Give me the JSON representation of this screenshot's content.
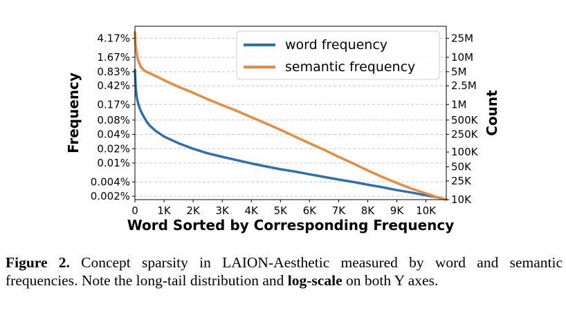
{
  "chart_data": {
    "type": "line",
    "xlabel": "Word Sorted by Corresponding Frequency",
    "ylabel_left": "Frequency",
    "ylabel_right": "Count",
    "xlim": [
      0,
      10700
    ],
    "y_scale": "log",
    "ylim": [
      0.0017,
      7.5
    ],
    "x_ticks": [
      {
        "value": 0,
        "label": "0"
      },
      {
        "value": 1000,
        "label": "1K"
      },
      {
        "value": 2000,
        "label": "2K"
      },
      {
        "value": 3000,
        "label": "3K"
      },
      {
        "value": 4000,
        "label": "4K"
      },
      {
        "value": 5000,
        "label": "5K"
      },
      {
        "value": 6000,
        "label": "6K"
      },
      {
        "value": 7000,
        "label": "7K"
      },
      {
        "value": 8000,
        "label": "8K"
      },
      {
        "value": 9000,
        "label": "9K"
      },
      {
        "value": 10000,
        "label": "10K"
      }
    ],
    "y_ticks_left": [
      {
        "value": 4.17,
        "label": "4.17%"
      },
      {
        "value": 1.67,
        "label": "1.67%"
      },
      {
        "value": 0.83,
        "label": "0.83%"
      },
      {
        "value": 0.42,
        "label": "0.42%"
      },
      {
        "value": 0.17,
        "label": "0.17%"
      },
      {
        "value": 0.08,
        "label": "0.08%"
      },
      {
        "value": 0.04,
        "label": "0.04%"
      },
      {
        "value": 0.02,
        "label": "0.02%"
      },
      {
        "value": 0.01,
        "label": "0.01%"
      },
      {
        "value": 0.004,
        "label": "0.004%"
      },
      {
        "value": 0.002,
        "label": "0.002%"
      }
    ],
    "y_ticks_right": [
      {
        "value": 4.17,
        "label": "25M"
      },
      {
        "value": 1.67,
        "label": "10M"
      },
      {
        "value": 0.83,
        "label": "5M"
      },
      {
        "value": 0.42,
        "label": "2.5M"
      },
      {
        "value": 0.17,
        "label": "1M"
      },
      {
        "value": 0.08,
        "label": "500K"
      },
      {
        "value": 0.04,
        "label": "250K"
      },
      {
        "value": 0.017,
        "label": "100K"
      },
      {
        "value": 0.0083,
        "label": "50K"
      },
      {
        "value": 0.0042,
        "label": "25K"
      },
      {
        "value": 0.0017,
        "label": "10K"
      }
    ],
    "grid": "horizontal-dashed",
    "legend_position": "top-right",
    "series": [
      {
        "name": "word frequency",
        "color": "#2f6fb0",
        "x": [
          0,
          25,
          60,
          100,
          150,
          200,
          300,
          400,
          500,
          700,
          1000,
          1500,
          2000,
          2500,
          3000,
          3500,
          4000,
          4500,
          5000,
          5500,
          6000,
          6500,
          7000,
          7500,
          8000,
          8500,
          9000,
          9500,
          10000,
          10400,
          10700
        ],
        "y": [
          0.9,
          0.4,
          0.25,
          0.19,
          0.15,
          0.125,
          0.095,
          0.075,
          0.062,
          0.048,
          0.036,
          0.026,
          0.02,
          0.016,
          0.0135,
          0.0115,
          0.0098,
          0.0085,
          0.0074,
          0.0066,
          0.0058,
          0.0051,
          0.0045,
          0.004,
          0.0035,
          0.0031,
          0.0027,
          0.0024,
          0.0021,
          0.0019,
          0.0017
        ]
      },
      {
        "name": "semantic frequency",
        "color": "#ea8a3d",
        "x": [
          0,
          20,
          50,
          100,
          200,
          300,
          400,
          500,
          700,
          1000,
          1500,
          2000,
          2500,
          3000,
          3500,
          4000,
          4500,
          5000,
          5500,
          6000,
          6500,
          7000,
          7500,
          8000,
          8500,
          9000,
          9500,
          10000,
          10400,
          10700
        ],
        "y": [
          5.6,
          3.2,
          2.2,
          1.5,
          1.05,
          0.9,
          0.82,
          0.78,
          0.68,
          0.55,
          0.4,
          0.3,
          0.22,
          0.165,
          0.125,
          0.092,
          0.068,
          0.05,
          0.036,
          0.026,
          0.019,
          0.0135,
          0.0098,
          0.007,
          0.0051,
          0.0038,
          0.0029,
          0.0023,
          0.0019,
          0.0017
        ]
      }
    ]
  },
  "caption": {
    "label": "Figure 2.",
    "text_1": " Concept sparsity in LAION-Aesthetic measured by word and semantic frequencies. Note the long-tail distribution and ",
    "bold": "log-scale",
    "text_2": " on both Y axes."
  }
}
